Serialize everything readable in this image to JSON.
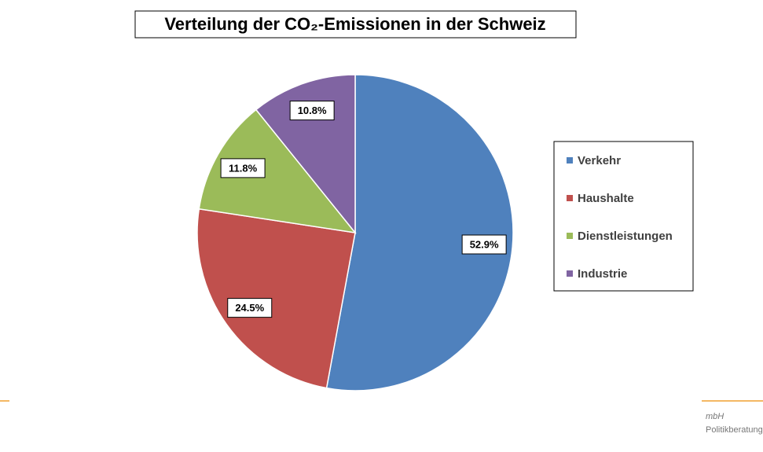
{
  "chart_data": {
    "type": "pie",
    "title": "Verteilung der CO₂-Emissionen in der Schweiz",
    "categories": [
      "Verkehr",
      "Haushalte",
      "Dienstleistungen",
      "Industrie"
    ],
    "values": [
      52.9,
      24.5,
      11.8,
      10.8
    ],
    "value_labels": [
      "52.9%",
      "24.5%",
      "11.8%",
      "10.8%"
    ],
    "colors": [
      "#4f81bd",
      "#c0504d",
      "#9bbb59",
      "#8064a2"
    ],
    "legend": "right"
  },
  "background_text": [
    "mbH",
    "Politikberatung"
  ]
}
